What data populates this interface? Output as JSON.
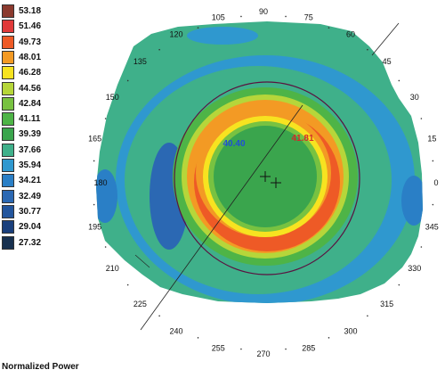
{
  "legend": {
    "title": "Normalized Power",
    "entries": [
      {
        "value": "53.18",
        "color": "#8b3a2e"
      },
      {
        "value": "51.46",
        "color": "#e03a3a"
      },
      {
        "value": "49.73",
        "color": "#ee5a26"
      },
      {
        "value": "48.01",
        "color": "#f39a24"
      },
      {
        "value": "46.28",
        "color": "#f7e320"
      },
      {
        "value": "44.56",
        "color": "#b6d63a"
      },
      {
        "value": "42.84",
        "color": "#78c241"
      },
      {
        "value": "41.11",
        "color": "#4eb447"
      },
      {
        "value": "39.39",
        "color": "#3aa54d"
      },
      {
        "value": "37.66",
        "color": "#3fb08a"
      },
      {
        "value": "35.94",
        "color": "#2f98cf"
      },
      {
        "value": "34.21",
        "color": "#2a7fc6"
      },
      {
        "value": "32.49",
        "color": "#2b68b3"
      },
      {
        "value": "30.77",
        "color": "#22559d"
      },
      {
        "value": "29.04",
        "color": "#1a3f7c"
      },
      {
        "value": "27.32",
        "color": "#17304f"
      }
    ]
  },
  "map": {
    "angle_labels": [
      "0",
      "15",
      "30",
      "45",
      "60",
      "75",
      "90",
      "105",
      "120",
      "135",
      "150",
      "165",
      "180",
      "195",
      "210",
      "225",
      "240",
      "255",
      "270",
      "285",
      "300",
      "315",
      "330",
      "345"
    ],
    "readings": [
      {
        "value": "40.40",
        "color": "#1f4fd6"
      },
      {
        "value": "41.81",
        "color": "#d42a2a"
      }
    ]
  }
}
